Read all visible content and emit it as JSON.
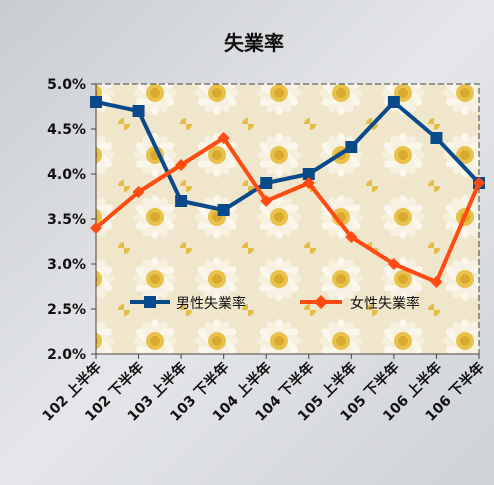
{
  "chart_data": {
    "type": "line",
    "title": "失業率",
    "categories": [
      "102 上半年",
      "102 下半年",
      "103 上半年",
      "103 下半年",
      "104 上半年",
      "104 下半年",
      "105 上半年",
      "105 下半年",
      "106 上半年",
      "106 下半年"
    ],
    "series": [
      {
        "name": "男性失業率",
        "color": "#0b4a8a",
        "marker": "square",
        "values": [
          4.8,
          4.7,
          3.7,
          3.6,
          3.9,
          4.0,
          4.3,
          4.8,
          4.4,
          3.9
        ]
      },
      {
        "name": "女性失業率",
        "color": "#ff4a12",
        "marker": "diamond",
        "values": [
          3.4,
          3.8,
          4.1,
          4.4,
          3.7,
          3.9,
          3.3,
          3.0,
          2.8,
          3.9
        ]
      }
    ],
    "yticks": [
      "5.0%",
      "4.5%",
      "4.0%",
      "3.5%",
      "3.0%",
      "2.5%",
      "2.0%"
    ],
    "ylim": [
      2.0,
      5.0
    ],
    "grid": false,
    "legend_position": "bottom-inside",
    "plot_background": "daisy flower pattern",
    "page_background": "grey marble texture"
  }
}
